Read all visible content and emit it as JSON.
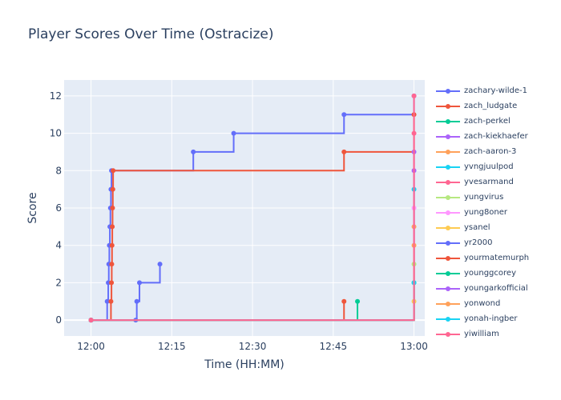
{
  "chart_data": {
    "type": "line",
    "line_shape": "step",
    "title": "Player Scores Over Time (Ostracize)",
    "xlabel": "Time (HH:MM)",
    "ylabel": "Score",
    "x_unit": "minutes after 12:00",
    "xlim": [
      -5,
      62
    ],
    "ylim": [
      -0.85,
      12.85
    ],
    "xticks": [
      {
        "value": 0,
        "label": "12:00"
      },
      {
        "value": 15,
        "label": "12:15"
      },
      {
        "value": 30,
        "label": "12:30"
      },
      {
        "value": 45,
        "label": "12:45"
      },
      {
        "value": 60,
        "label": "13:00"
      }
    ],
    "yticks": [
      0,
      2,
      4,
      6,
      8,
      10,
      12
    ],
    "grid": true,
    "legend_position": "right",
    "series": [
      {
        "name": "zachary-wilde-1",
        "color": "#636efa",
        "x": [
          0,
          3.0,
          3.2,
          3.3,
          3.4,
          3.5,
          3.6,
          3.7,
          3.8,
          19.0,
          26.5,
          47.0,
          60
        ],
        "y": [
          0,
          1,
          2,
          3,
          4,
          5,
          6,
          7,
          8,
          9,
          10,
          11,
          12
        ]
      },
      {
        "name": "zach_ludgate",
        "color": "#EF553B",
        "x": [
          0,
          3.7,
          3.8,
          3.85,
          3.9,
          3.95,
          4.0,
          4.05,
          4.1,
          47.0,
          60
        ],
        "y": [
          0,
          1,
          2,
          3,
          4,
          5,
          6,
          7,
          8,
          9,
          11
        ]
      },
      {
        "name": "zach-perkel",
        "color": "#00cc96",
        "x": [
          0,
          49.5
        ],
        "y": [
          0,
          1
        ]
      },
      {
        "name": "zach-kiekhaefer",
        "color": "#ab63fa",
        "x": [
          0,
          60
        ],
        "y": [
          0,
          9
        ]
      },
      {
        "name": "zach-aaron-3",
        "color": "#FFA15A",
        "x": [
          0,
          60
        ],
        "y": [
          0,
          5
        ]
      },
      {
        "name": "yvngjuulpod",
        "color": "#19d3f3",
        "x": [
          0,
          60
        ],
        "y": [
          0,
          7
        ]
      },
      {
        "name": "yvesarmand",
        "color": "#FF6692",
        "x": [
          0,
          60
        ],
        "y": [
          0,
          10
        ]
      },
      {
        "name": "yungvirus",
        "color": "#B6E880",
        "x": [
          0,
          60
        ],
        "y": [
          0,
          3
        ]
      },
      {
        "name": "yung8oner",
        "color": "#FF97FF",
        "x": [
          0,
          60
        ],
        "y": [
          0,
          6
        ]
      },
      {
        "name": "ysanel",
        "color": "#FECB52",
        "x": [
          0,
          60
        ],
        "y": [
          0,
          1
        ]
      },
      {
        "name": "yr2000",
        "color": "#636efa",
        "x": [
          0,
          8.3,
          8.5,
          9.0,
          12.8
        ],
        "y": [
          0,
          0,
          1,
          2,
          3
        ]
      },
      {
        "name": "yourmatemurph",
        "color": "#EF553B",
        "x": [
          0,
          47.0
        ],
        "y": [
          0,
          1
        ]
      },
      {
        "name": "younggcorey",
        "color": "#00cc96",
        "x": [
          0,
          60
        ],
        "y": [
          0,
          2
        ]
      },
      {
        "name": "youngarkofficial",
        "color": "#ab63fa",
        "x": [
          0,
          60
        ],
        "y": [
          0,
          8
        ]
      },
      {
        "name": "yonwond",
        "color": "#FFA15A",
        "x": [
          0,
          60
        ],
        "y": [
          0,
          4
        ]
      },
      {
        "name": "yonah-ingber",
        "color": "#19d3f3",
        "x": [
          0,
          60
        ],
        "y": [
          0,
          2
        ]
      },
      {
        "name": "yiwilliam",
        "color": "#FF6692",
        "x": [
          0,
          60
        ],
        "y": [
          0,
          12
        ]
      }
    ]
  }
}
